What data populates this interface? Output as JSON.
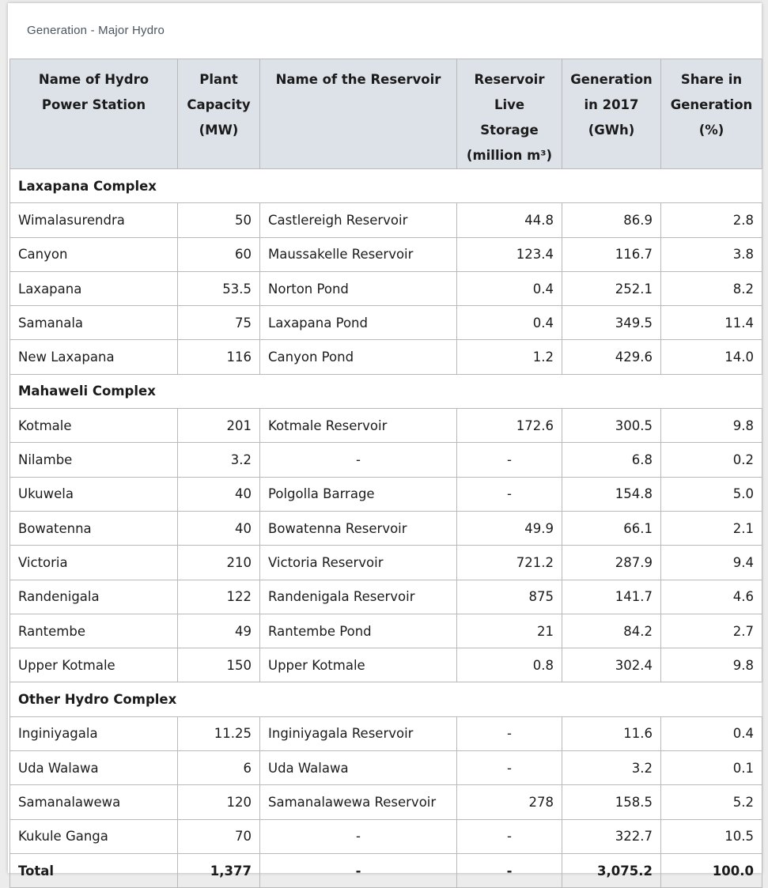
{
  "title": "Generation - Major Hydro",
  "headers": {
    "station": [
      "Name of Hydro",
      "Power Station"
    ],
    "capacity": [
      "Plant",
      "Capacity",
      "(MW)"
    ],
    "reservoir": [
      "Name of the Reservoir"
    ],
    "storage": [
      "Reservoir",
      "Live Storage",
      "(million m³)"
    ],
    "generation": [
      "Generation",
      "in 2017",
      "(GWh)"
    ],
    "share": [
      "Share in",
      "Generation",
      "(%)"
    ]
  },
  "sections": [
    {
      "name": "Laxapana Complex",
      "rows": [
        {
          "station": "Wimalasurendra",
          "capacity": "50",
          "reservoir": "Castlereigh Reservoir",
          "storage": "44.8",
          "generation": "86.9",
          "share": "2.8"
        },
        {
          "station": "Canyon",
          "capacity": "60",
          "reservoir": "Maussakelle Reservoir",
          "storage": "123.4",
          "generation": "116.7",
          "share": "3.8"
        },
        {
          "station": "Laxapana",
          "capacity": "53.5",
          "reservoir": "Norton Pond",
          "storage": "0.4",
          "generation": "252.1",
          "share": "8.2"
        },
        {
          "station": "Samanala",
          "capacity": "75",
          "reservoir": "Laxapana Pond",
          "storage": "0.4",
          "generation": "349.5",
          "share": "11.4"
        },
        {
          "station": "New Laxapana",
          "capacity": "116",
          "reservoir": "Canyon Pond",
          "storage": "1.2",
          "generation": "429.6",
          "share": "14.0"
        }
      ]
    },
    {
      "name": "Mahaweli Complex",
      "rows": [
        {
          "station": "Kotmale",
          "capacity": "201",
          "reservoir": "Kotmale Reservoir",
          "storage": "172.6",
          "generation": "300.5",
          "share": "9.8"
        },
        {
          "station": "Nilambe",
          "capacity": "3.2",
          "reservoir": "-",
          "storage": "-",
          "generation": "6.8",
          "share": "0.2"
        },
        {
          "station": "Ukuwela",
          "capacity": "40",
          "reservoir": "Polgolla Barrage",
          "storage": "-",
          "generation": "154.8",
          "share": "5.0"
        },
        {
          "station": "Bowatenna",
          "capacity": "40",
          "reservoir": "Bowatenna Reservoir",
          "storage": "49.9",
          "generation": "66.1",
          "share": "2.1"
        },
        {
          "station": "Victoria",
          "capacity": "210",
          "reservoir": "Victoria Reservoir",
          "storage": "721.2",
          "generation": "287.9",
          "share": "9.4"
        },
        {
          "station": "Randenigala",
          "capacity": "122",
          "reservoir": "Randenigala Reservoir",
          "storage": "875",
          "generation": "141.7",
          "share": "4.6"
        },
        {
          "station": "Rantembe",
          "capacity": "49",
          "reservoir": "Rantembe Pond",
          "storage": "21",
          "generation": "84.2",
          "share": "2.7"
        },
        {
          "station": "Upper Kotmale",
          "capacity": "150",
          "reservoir": "Upper Kotmale",
          "storage": "0.8",
          "generation": "302.4",
          "share": "9.8"
        }
      ]
    },
    {
      "name": "Other Hydro Complex",
      "rows": [
        {
          "station": "Inginiyagala",
          "capacity": "11.25",
          "reservoir": "Inginiyagala Reservoir",
          "storage": "-",
          "generation": "11.6",
          "share": "0.4"
        },
        {
          "station": "Uda Walawa",
          "capacity": "6",
          "reservoir": "Uda Walawa",
          "storage": "-",
          "generation": "3.2",
          "share": "0.1"
        },
        {
          "station": "Samanalawewa",
          "capacity": "120",
          "reservoir": "Samanalawewa Reservoir",
          "storage": "278",
          "generation": "158.5",
          "share": "5.2"
        },
        {
          "station": "Kukule Ganga",
          "capacity": "70",
          "reservoir": "-",
          "storage": "-",
          "generation": "322.7",
          "share": "10.5"
        }
      ]
    }
  ],
  "total": {
    "station": "Total",
    "capacity": "1,377",
    "reservoir": "-",
    "storage": "-",
    "generation": "3,075.2",
    "share": "100.0"
  },
  "colors": {
    "header_bg": "#dde1e8",
    "border": "#b9b9b9",
    "title_text": "#4a5560"
  }
}
